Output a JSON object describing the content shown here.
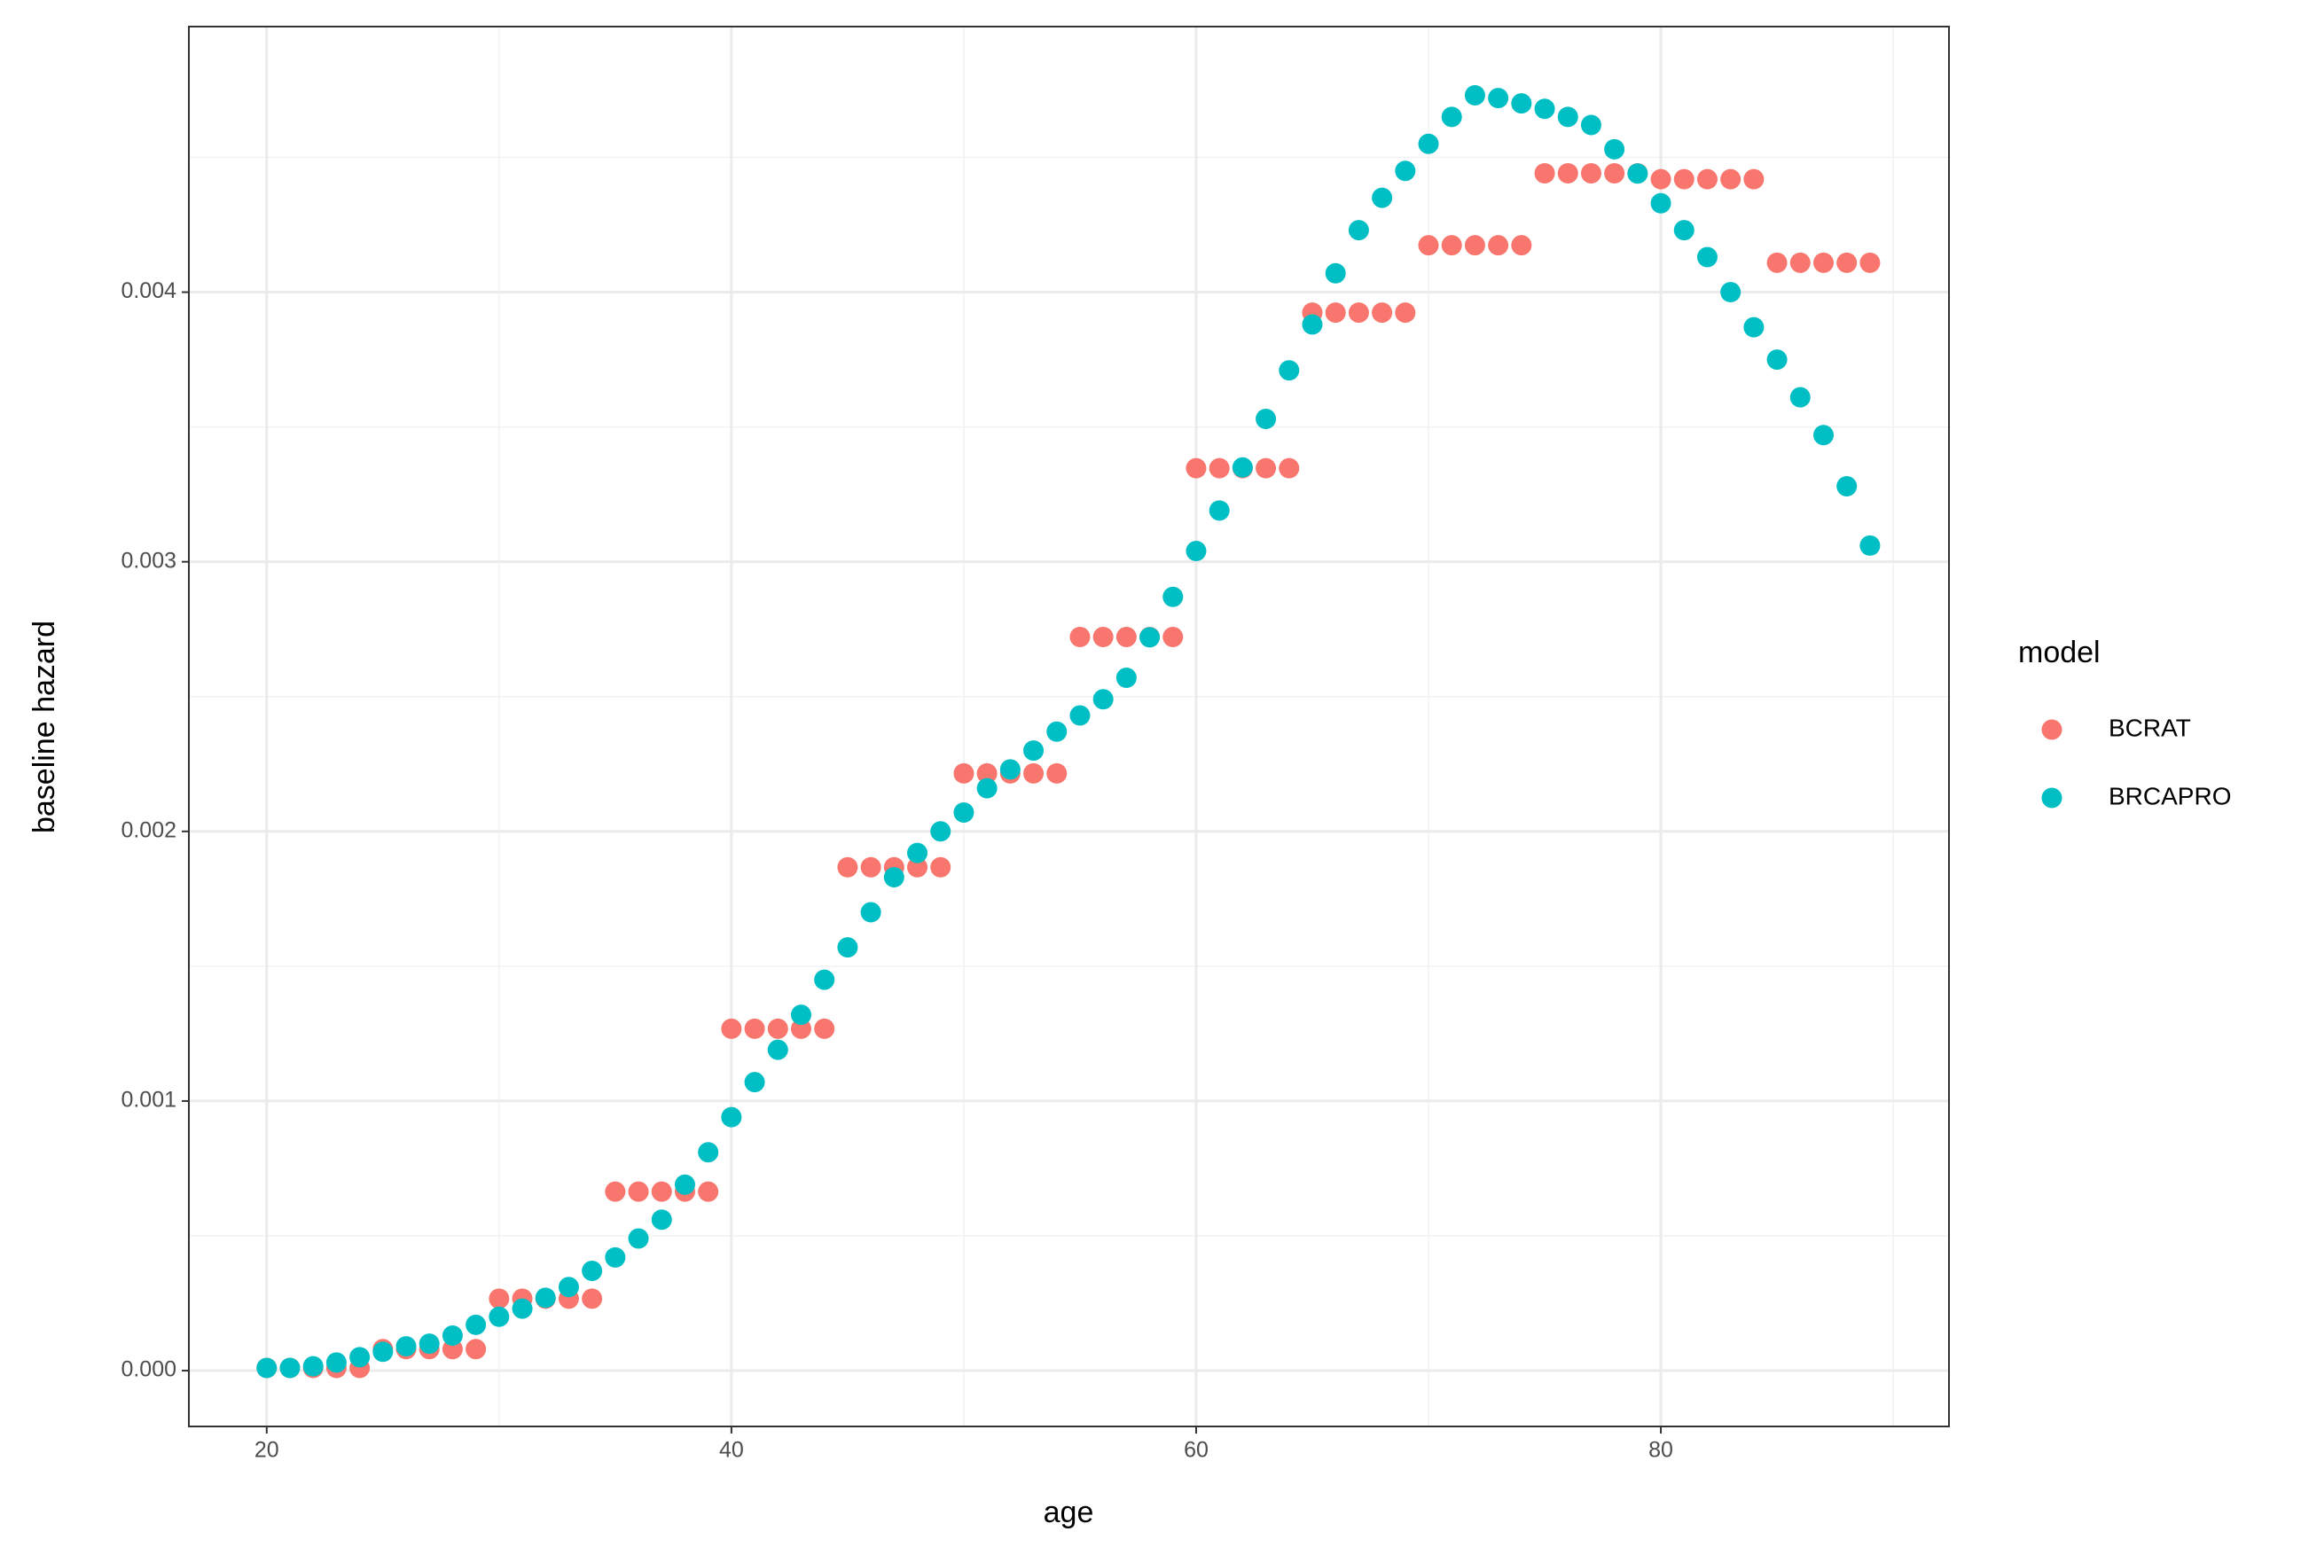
{
  "chart_data": {
    "type": "scatter",
    "x_label": "age",
    "y_label": "baseline hazard",
    "legend_title": "model",
    "x": [
      20,
      21,
      22,
      23,
      24,
      25,
      26,
      27,
      28,
      29,
      30,
      31,
      32,
      33,
      34,
      35,
      36,
      37,
      38,
      39,
      40,
      41,
      42,
      43,
      44,
      45,
      46,
      47,
      48,
      49,
      50,
      51,
      52,
      53,
      54,
      55,
      56,
      57,
      58,
      59,
      60,
      61,
      62,
      63,
      64,
      65,
      66,
      67,
      68,
      69,
      70,
      71,
      72,
      73,
      74,
      75,
      76,
      77,
      78,
      79,
      80,
      81,
      82,
      83,
      84,
      85,
      86,
      87,
      88,
      89
    ],
    "series": [
      {
        "name": "BCRAT",
        "color": "#F8766D",
        "values": [
          1e-05,
          1e-05,
          1e-05,
          1e-05,
          1e-05,
          8e-05,
          8e-05,
          8e-05,
          8e-05,
          8e-05,
          0.000267,
          0.000267,
          0.000267,
          0.000267,
          0.000267,
          0.000664,
          0.000664,
          0.000664,
          0.000664,
          0.000664,
          0.001268,
          0.001268,
          0.001268,
          0.001268,
          0.001268,
          0.001867,
          0.001867,
          0.001867,
          0.001867,
          0.001867,
          0.002215,
          0.002215,
          0.002215,
          0.002215,
          0.002215,
          0.002721,
          0.002721,
          0.002721,
          0.002721,
          0.002721,
          0.003347,
          0.003347,
          0.003347,
          0.003347,
          0.003347,
          0.003924,
          0.003924,
          0.003924,
          0.003924,
          0.003924,
          0.004174,
          0.004174,
          0.004174,
          0.004174,
          0.004174,
          0.004441,
          0.004441,
          0.004441,
          0.004441,
          0.004441,
          0.004419,
          0.004419,
          0.004419,
          0.004419,
          0.004419,
          0.004109,
          0.004109,
          0.004109,
          0.004109,
          0.004109
        ]
      },
      {
        "name": "BRCAPRO",
        "color": "#00BFC4",
        "values": [
          1e-05,
          1e-05,
          1.6e-05,
          3e-05,
          5e-05,
          7e-05,
          9e-05,
          0.0001,
          0.00013,
          0.00017,
          0.0002,
          0.00023,
          0.00027,
          0.00031,
          0.00037,
          0.00042,
          0.00049,
          0.00056,
          0.00069,
          0.00081,
          0.00094,
          0.00107,
          0.00119,
          0.00132,
          0.00145,
          0.00157,
          0.0017,
          0.00183,
          0.00192,
          0.002,
          0.00207,
          0.00216,
          0.00223,
          0.0023,
          0.00237,
          0.00243,
          0.00249,
          0.00257,
          0.00272,
          0.00287,
          0.00304,
          0.00319,
          0.00335,
          0.00353,
          0.00371,
          0.00388,
          0.00407,
          0.00423,
          0.00435,
          0.00445,
          0.00455,
          0.00465,
          0.00473,
          0.00472,
          0.0047,
          0.00468,
          0.00465,
          0.00462,
          0.00453,
          0.00444,
          0.00433,
          0.00423,
          0.00413,
          0.004,
          0.00387,
          0.00375,
          0.00361,
          0.00347,
          0.00328,
          0.00306
        ]
      }
    ],
    "xlim": [
      16.65,
      92.4
    ],
    "xticks": [
      20,
      40,
      60,
      80
    ],
    "ylim": [
      -0.000207,
      0.004985
    ],
    "yticks": [
      {
        "value": 0,
        "label": "0.000"
      },
      0.001,
      0.002,
      0.003,
      0.004
    ],
    "grid": true,
    "legend": "right"
  }
}
